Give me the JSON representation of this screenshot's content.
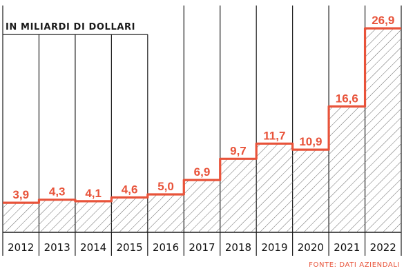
{
  "chart_data": {
    "type": "area",
    "subtitle": "IN MILIARDI DI DOLLARI",
    "categories": [
      "2012",
      "2013",
      "2014",
      "2015",
      "2016",
      "2017",
      "2018",
      "2019",
      "2020",
      "2021",
      "2022"
    ],
    "values": [
      3.9,
      4.3,
      4.1,
      4.6,
      5.0,
      6.9,
      9.7,
      11.7,
      10.9,
      16.6,
      26.9
    ],
    "value_labels": [
      "3,9",
      "4,3",
      "4,1",
      "4,6",
      "5,0",
      "6,9",
      "9,7",
      "11,7",
      "10,9",
      "16,6",
      "26,9"
    ],
    "ylim": [
      0,
      30
    ],
    "source": "FONTE: DATI AZIENDALI",
    "colors": {
      "line": "#e8533a",
      "grid": "#1a1a1a",
      "hatch": "#555555",
      "labels": "#e8533a"
    }
  }
}
